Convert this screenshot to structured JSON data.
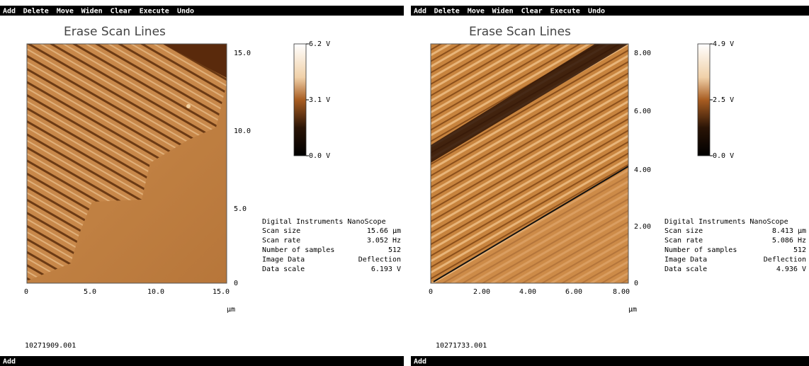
{
  "panels": [
    {
      "menu": [
        "Add",
        "Delete",
        "Move",
        "Widen",
        "Clear",
        "Execute",
        "Undo"
      ],
      "title": "Erase Scan Lines",
      "yticks": [
        "15.0",
        "10.0",
        "5.0",
        "0"
      ],
      "xticks": [
        "0",
        "5.0",
        "10.0",
        "15.0"
      ],
      "unit": "µm",
      "colorbar": [
        "6.2 V",
        "3.1 V",
        "0.0 V"
      ],
      "info_header": "Digital Instruments NanoScope",
      "info": [
        [
          "Scan size",
          "15.66 µm"
        ],
        [
          "Scan rate",
          "3.052 Hz"
        ],
        [
          "Number of samples",
          "512"
        ],
        [
          "Image Data",
          "Deflection"
        ],
        [
          "Data scale",
          "6.193 V"
        ]
      ],
      "filename": "10271909.001",
      "status": "Add"
    },
    {
      "menu": [
        "Add",
        "Delete",
        "Move",
        "Widen",
        "Clear",
        "Execute",
        "Undo"
      ],
      "title": "Erase Scan Lines",
      "yticks": [
        "8.00",
        "6.00",
        "4.00",
        "2.00",
        "0"
      ],
      "xticks": [
        "0",
        "2.00",
        "4.00",
        "6.00",
        "8.00"
      ],
      "unit": "µm",
      "colorbar": [
        "4.9 V",
        "2.5 V",
        "0.0 V"
      ],
      "info_header": "Digital Instruments NanoScope",
      "info": [
        [
          "Scan size",
          "8.413 µm"
        ],
        [
          "Scan rate",
          "5.086 Hz"
        ],
        [
          "Number of samples",
          "512"
        ],
        [
          "Image Data",
          "Deflection"
        ],
        [
          "Data scale",
          "4.936 V"
        ]
      ],
      "filename": "10271733.001",
      "status": "Add"
    }
  ]
}
